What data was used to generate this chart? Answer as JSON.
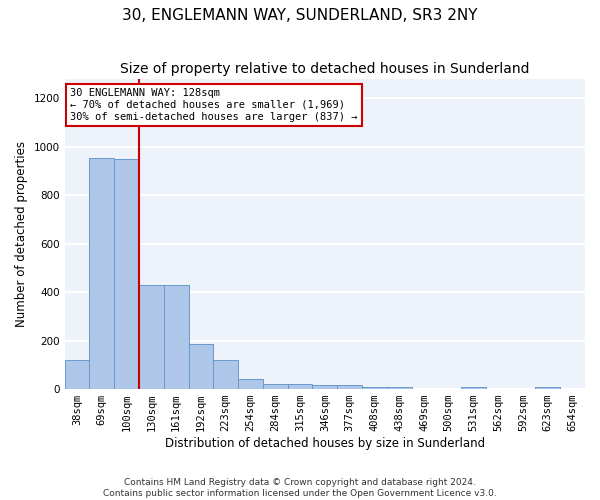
{
  "title": "30, ENGLEMANN WAY, SUNDERLAND, SR3 2NY",
  "subtitle": "Size of property relative to detached houses in Sunderland",
  "xlabel": "Distribution of detached houses by size in Sunderland",
  "ylabel": "Number of detached properties",
  "categories": [
    "38sqm",
    "69sqm",
    "100sqm",
    "130sqm",
    "161sqm",
    "192sqm",
    "223sqm",
    "254sqm",
    "284sqm",
    "315sqm",
    "346sqm",
    "377sqm",
    "408sqm",
    "438sqm",
    "469sqm",
    "500sqm",
    "531sqm",
    "562sqm",
    "592sqm",
    "623sqm",
    "654sqm"
  ],
  "values": [
    122,
    955,
    948,
    428,
    428,
    185,
    122,
    42,
    20,
    20,
    15,
    15,
    8,
    8,
    0,
    0,
    8,
    0,
    0,
    8,
    0
  ],
  "bar_color": "#aec6e8",
  "bar_edge_color": "#6699cc",
  "vline_x": 2.5,
  "vline_color": "#cc0000",
  "annotation_line1": "30 ENGLEMANN WAY: 128sqm",
  "annotation_line2": "← 70% of detached houses are smaller (1,969)",
  "annotation_line3": "30% of semi-detached houses are larger (837) →",
  "annotation_box_color": "white",
  "annotation_box_edge_color": "#cc0000",
  "ylim": [
    0,
    1280
  ],
  "yticks": [
    0,
    200,
    400,
    600,
    800,
    1000,
    1200
  ],
  "footer": "Contains HM Land Registry data © Crown copyright and database right 2024.\nContains public sector information licensed under the Open Government Licence v3.0.",
  "background_color": "#eef2fa",
  "grid_color": "white",
  "title_fontsize": 11,
  "subtitle_fontsize": 10,
  "axis_label_fontsize": 8.5,
  "tick_fontsize": 7.5,
  "annotation_fontsize": 7.5,
  "footer_fontsize": 6.5
}
